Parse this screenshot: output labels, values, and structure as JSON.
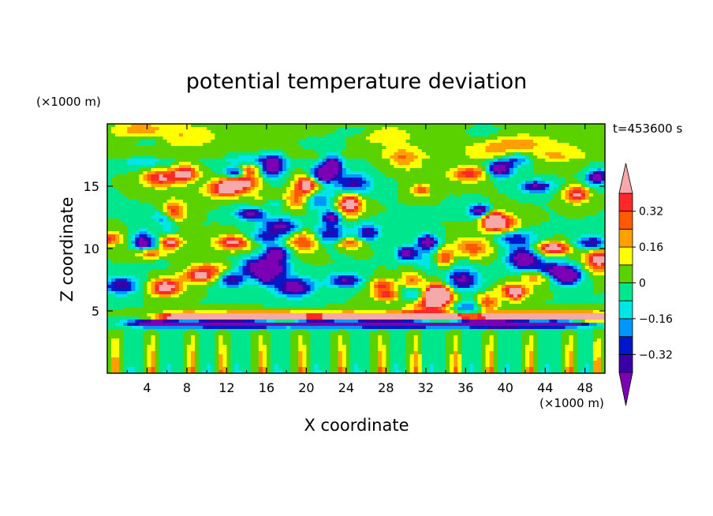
{
  "chart_data": {
    "type": "heatmap",
    "title": "potential temperature deviation",
    "xlabel": "X coordinate",
    "ylabel": "Z coordinate",
    "x_unit": "(×1000 m)",
    "y_unit": "(×1000 m)",
    "time_label": "t=453600 s",
    "xlim": [
      0,
      50
    ],
    "ylim": [
      0,
      20
    ],
    "x_ticks": [
      4,
      8,
      12,
      16,
      20,
      24,
      28,
      32,
      36,
      40,
      44,
      48
    ],
    "y_ticks": [
      5,
      10,
      15
    ],
    "colorbar": {
      "levels": [
        -0.4,
        -0.32,
        -0.24,
        -0.16,
        -0.08,
        0,
        0.08,
        0.16,
        0.24,
        0.32,
        0.4
      ],
      "tick_labels": [
        "0.32",
        "0.16",
        "0",
        "−0.16",
        "−0.32"
      ],
      "tick_values": [
        0.32,
        0.16,
        0,
        -0.16,
        -0.32
      ],
      "colors": [
        "#7b00b4",
        "#3a00a8",
        "#0018c8",
        "#0096ff",
        "#00e6e6",
        "#00e68c",
        "#5ad200",
        "#ffff00",
        "#ffa000",
        "#ff5a00",
        "#ff2828",
        "#f7a8a8"
      ],
      "extend": "both"
    },
    "layers": [
      {
        "z_range": [
          17.5,
          20
        ],
        "dominant": [
          0,
          0.08
        ],
        "pattern": "smooth green band"
      },
      {
        "z_range": [
          5,
          17.5
        ],
        "range": [
          -0.4,
          0.4
        ],
        "pattern": "mixed cells of alternating sign"
      },
      {
        "z_range": [
          3.5,
          5
        ],
        "range": [
          -0.4,
          0.4
        ],
        "pattern": "strong dipoles, pink above purple"
      },
      {
        "z_range": [
          0,
          3.5
        ],
        "range": [
          -0.16,
          0.32
        ],
        "pattern": "vertical plumes"
      }
    ]
  }
}
